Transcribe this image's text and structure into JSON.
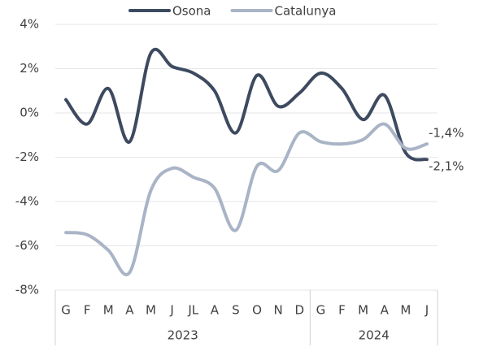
{
  "chart_data": {
    "type": "line",
    "categories": [
      "G",
      "F",
      "M",
      "A",
      "M",
      "J",
      "JL",
      "A",
      "S",
      "O",
      "N",
      "D",
      "G",
      "F",
      "M",
      "A",
      "M",
      "J"
    ],
    "groups": [
      {
        "label": "2023",
        "span": 12
      },
      {
        "label": "2024",
        "span": 6
      }
    ],
    "series": [
      {
        "name": "Osona",
        "color": "#3d4a60",
        "values": [
          0.6,
          -0.5,
          1.1,
          -1.3,
          2.7,
          2.1,
          1.8,
          1.0,
          -0.9,
          1.7,
          0.3,
          0.9,
          1.8,
          1.1,
          -0.3,
          0.8,
          -1.8,
          -2.1
        ],
        "value_labels": [
          null,
          null,
          null,
          null,
          null,
          null,
          null,
          null,
          null,
          null,
          null,
          null,
          null,
          null,
          null,
          null,
          null,
          "-2,1%"
        ]
      },
      {
        "name": "Catalunya",
        "color": "#a9b4c6",
        "values": [
          -5.4,
          -5.5,
          -6.2,
          -7.2,
          -3.5,
          -2.5,
          -2.9,
          -3.4,
          -5.3,
          -2.4,
          -2.6,
          -0.9,
          -1.3,
          -1.4,
          -1.2,
          -0.5,
          -1.6,
          -1.4
        ],
        "value_labels": [
          null,
          null,
          null,
          null,
          null,
          null,
          null,
          null,
          null,
          null,
          null,
          null,
          null,
          null,
          null,
          null,
          null,
          "-1,4%"
        ]
      }
    ],
    "ylim": [
      -8,
      4
    ],
    "yticks": [
      {
        "value": -8,
        "label": "-8%"
      },
      {
        "value": -6,
        "label": "-6%"
      },
      {
        "value": -4,
        "label": "-4%"
      },
      {
        "value": -2,
        "label": "-2%"
      },
      {
        "value": 0,
        "label": "0%"
      },
      {
        "value": 2,
        "label": "2%"
      },
      {
        "value": 4,
        "label": "4%"
      }
    ],
    "grid": true,
    "legend": "top"
  }
}
